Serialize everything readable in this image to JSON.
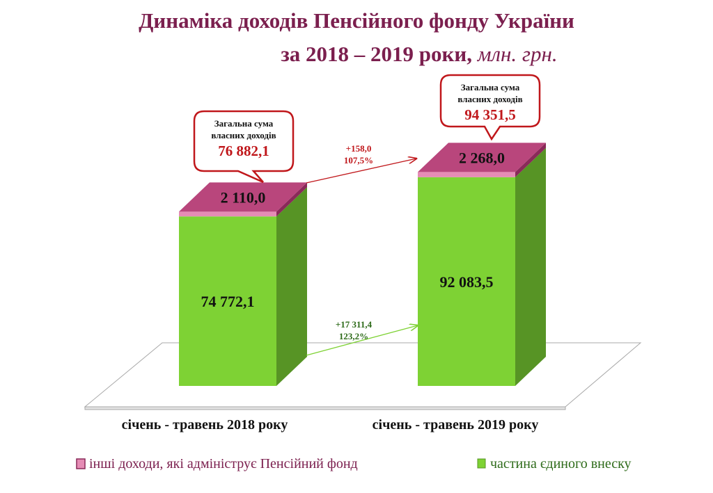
{
  "chart_data": {
    "type": "bar",
    "stacked": true,
    "title_line1": "Динаміка доходів Пенсійного фонду України",
    "title_line2": "за 2018 – 2019 роки,",
    "title_unit": "млн. грн.",
    "categories": [
      "січень - травень 2018 року",
      "січень - травень 2019 року"
    ],
    "series": [
      {
        "name": "частина єдиного внеску",
        "values": [
          74772.1,
          92083.5
        ],
        "labels": [
          "74 772,1",
          "92 083,5"
        ],
        "color": "#7ed234"
      },
      {
        "name": "інші доходи, які адмініструє Пенсійний фонд",
        "values": [
          2110.0,
          2268.0
        ],
        "labels": [
          "2 110,0",
          "2 268,0"
        ],
        "color": "#b9467c"
      }
    ],
    "totals": {
      "caption_line1": "Загальна сума",
      "caption_line2": "власних доходів",
      "values": [
        76882.1,
        94351.5
      ],
      "labels": [
        "76 882,1",
        "94 351,5"
      ]
    },
    "annotations": [
      {
        "series": "other",
        "line1": "+158,0",
        "line2": "107,5%",
        "color": "#c0171b"
      },
      {
        "series": "unified",
        "line1": "+17 311,4",
        "line2": "123,2%",
        "color": "#2e6b1a"
      }
    ],
    "legend_position": "bottom",
    "grid": false
  }
}
